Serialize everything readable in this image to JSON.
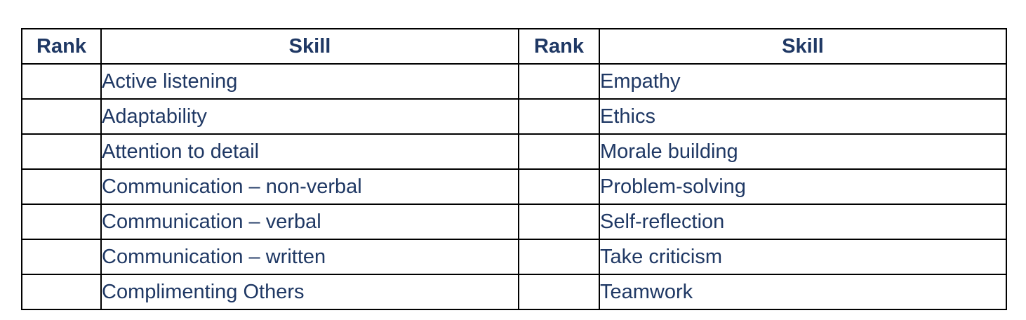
{
  "document": {
    "description": "Skill ranking worksheet table",
    "text_color": "#1f3864",
    "border_color": "#000000",
    "background_color": "#ffffff"
  },
  "table": {
    "headers": {
      "rank": "Rank",
      "skill": "Skill"
    },
    "rows": [
      {
        "left_rank": "",
        "left_skill": "Active listening",
        "right_rank": "",
        "right_skill": "Empathy"
      },
      {
        "left_rank": "",
        "left_skill": "Adaptability",
        "right_rank": "",
        "right_skill": "Ethics"
      },
      {
        "left_rank": "",
        "left_skill": "Attention to detail",
        "right_rank": "",
        "right_skill": "Morale building"
      },
      {
        "left_rank": "",
        "left_skill": "Communication – non-verbal",
        "right_rank": "",
        "right_skill": "Problem-solving"
      },
      {
        "left_rank": "",
        "left_skill": "Communication – verbal",
        "right_rank": "",
        "right_skill": "Self-reflection"
      },
      {
        "left_rank": "",
        "left_skill": "Communication – written",
        "right_rank": "",
        "right_skill": "Take criticism"
      },
      {
        "left_rank": "",
        "left_skill": "Complimenting Others",
        "right_rank": "",
        "right_skill": "Teamwork"
      }
    ]
  }
}
